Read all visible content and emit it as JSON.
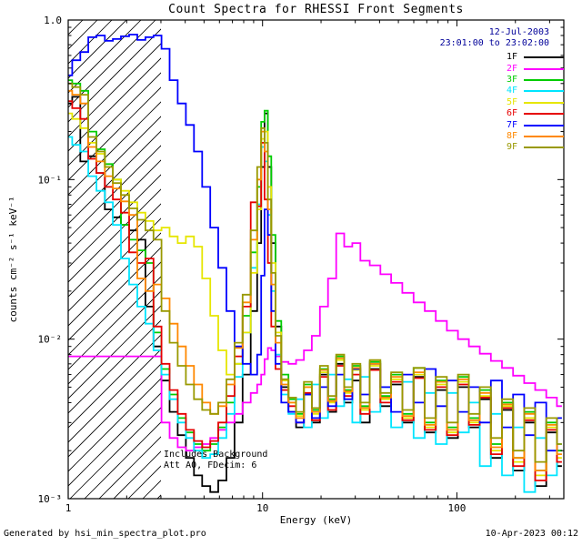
{
  "header": {
    "date": "12-Jul-2003",
    "time_range": "23:01:00 to 23:02:00",
    "color": "#000099"
  },
  "annotations": [
    "Includes Background",
    "Att A0, FDecim: 6"
  ],
  "footer": {
    "left": "Generated by hsi_min_spectra_plot.pro",
    "right": "10-Apr-2023 00:12"
  },
  "chart_data": {
    "type": "line",
    "mode": "histogram_steps",
    "title": "Count Spectra for RHESSI Front Segments",
    "xlabel": "Energy (keV)",
    "ylabel": "counts cm⁻² s⁻¹ keV⁻¹",
    "x_scale": "log",
    "y_scale": "log",
    "xlim": [
      1,
      355
    ],
    "ylim": [
      0.001,
      1
    ],
    "x_ticks": [
      {
        "value": 1,
        "label": "1"
      },
      {
        "value": 10,
        "label": "10"
      },
      {
        "value": 100,
        "label": "100"
      }
    ],
    "y_ticks": [
      {
        "value": 1,
        "label": "1.0"
      },
      {
        "value": 0.1,
        "label": "10⁻¹"
      },
      {
        "value": 0.01,
        "label": "10⁻²"
      },
      {
        "value": 0.001,
        "label": "10⁻³"
      }
    ],
    "hatch_region": {
      "x_from": 1,
      "x_to": 3
    },
    "x": [
      1.0,
      1.1,
      1.21,
      1.33,
      1.47,
      1.62,
      1.78,
      1.96,
      2.16,
      2.38,
      2.62,
      2.88,
      3.17,
      3.49,
      3.84,
      4.23,
      4.66,
      5.13,
      5.64,
      6.21,
      6.84,
      7.53,
      8.29,
      9.12,
      9.65,
      10.04,
      10.45,
      10.87,
      11.31,
      12.0,
      13.0,
      14.2,
      15.6,
      17.1,
      18.8,
      20.7,
      22.8,
      25.1,
      27.6,
      30.4,
      33.4,
      38.0,
      43.0,
      49.0,
      56.0,
      64.0,
      73.0,
      83.0,
      95.0,
      108.0,
      123.0,
      140.0,
      160.0,
      182.0,
      208.0,
      237.0,
      270.0,
      308.0,
      347.0
    ],
    "series": [
      {
        "name": "1F",
        "color": "#000000",
        "values": [
          0.3,
          0.33,
          0.13,
          0.14,
          0.11,
          0.065,
          0.058,
          0.052,
          0.048,
          0.042,
          0.016,
          0.009,
          0.0055,
          0.0035,
          0.0025,
          0.0018,
          0.0014,
          0.0012,
          0.0011,
          0.0013,
          0.0018,
          0.003,
          0.006,
          0.015,
          0.04,
          0.12,
          0.26,
          0.12,
          0.04,
          0.012,
          0.005,
          0.0035,
          0.0028,
          0.0045,
          0.003,
          0.006,
          0.0035,
          0.007,
          0.004,
          0.0055,
          0.003,
          0.0065,
          0.0038,
          0.0052,
          0.003,
          0.0058,
          0.0026,
          0.0048,
          0.0024,
          0.005,
          0.0028,
          0.0042,
          0.0018,
          0.0036,
          0.0015,
          0.003,
          0.0012,
          0.0026,
          0.0016
        ]
      },
      {
        "name": "2F",
        "color": "#ff00ff",
        "values": [
          0.0078,
          0.0078,
          0.0078,
          0.0078,
          0.0078,
          0.0078,
          0.0078,
          0.0078,
          0.0078,
          0.0078,
          0.0078,
          0.0078,
          0.003,
          0.0024,
          0.0021,
          0.002,
          0.0021,
          0.0022,
          0.0024,
          0.0027,
          0.003,
          0.0034,
          0.004,
          0.0046,
          0.0052,
          0.006,
          0.0075,
          0.0088,
          0.0085,
          0.0078,
          0.0072,
          0.007,
          0.0074,
          0.0085,
          0.0105,
          0.016,
          0.024,
          0.046,
          0.038,
          0.04,
          0.031,
          0.029,
          0.0255,
          0.0225,
          0.0195,
          0.017,
          0.015,
          0.013,
          0.0113,
          0.01,
          0.009,
          0.0081,
          0.0073,
          0.0066,
          0.0059,
          0.0053,
          0.0048,
          0.0043,
          0.0038
        ]
      },
      {
        "name": "3F",
        "color": "#00cc00",
        "values": [
          0.42,
          0.4,
          0.36,
          0.2,
          0.155,
          0.125,
          0.1,
          0.052,
          0.042,
          0.036,
          0.03,
          0.011,
          0.0065,
          0.0045,
          0.0032,
          0.0026,
          0.0022,
          0.002,
          0.0022,
          0.0028,
          0.004,
          0.007,
          0.014,
          0.035,
          0.09,
          0.23,
          0.27,
          0.14,
          0.045,
          0.013,
          0.006,
          0.0042,
          0.0034,
          0.0052,
          0.0036,
          0.0065,
          0.0042,
          0.0078,
          0.0048,
          0.0068,
          0.0038,
          0.0072,
          0.0044,
          0.006,
          0.0034,
          0.0066,
          0.003,
          0.0055,
          0.0028,
          0.0058,
          0.0032,
          0.0048,
          0.0022,
          0.004,
          0.0018,
          0.0035,
          0.0015,
          0.003,
          0.002
        ]
      },
      {
        "name": "4F",
        "color": "#00e5ff",
        "values": [
          0.185,
          0.165,
          0.15,
          0.105,
          0.085,
          0.072,
          0.052,
          0.032,
          0.022,
          0.016,
          0.0125,
          0.0085,
          0.006,
          0.0042,
          0.003,
          0.0024,
          0.002,
          0.0018,
          0.0019,
          0.0024,
          0.0034,
          0.0058,
          0.011,
          0.028,
          0.07,
          0.16,
          0.13,
          0.06,
          0.02,
          0.008,
          0.0045,
          0.0034,
          0.0042,
          0.0028,
          0.0052,
          0.0032,
          0.006,
          0.0038,
          0.0056,
          0.003,
          0.0058,
          0.0035,
          0.005,
          0.0028,
          0.0054,
          0.0024,
          0.0046,
          0.0022,
          0.0046,
          0.0026,
          0.004,
          0.0016,
          0.0034,
          0.0014,
          0.0028,
          0.0011,
          0.0024,
          0.0014,
          0.0022
        ]
      },
      {
        "name": "5F",
        "color": "#e6e600",
        "values": [
          0.26,
          0.24,
          0.21,
          0.17,
          0.145,
          0.12,
          0.1,
          0.085,
          0.072,
          0.062,
          0.055,
          0.048,
          0.05,
          0.044,
          0.04,
          0.044,
          0.038,
          0.024,
          0.014,
          0.0085,
          0.006,
          0.007,
          0.011,
          0.026,
          0.065,
          0.18,
          0.2,
          0.09,
          0.03,
          0.011,
          0.0055,
          0.004,
          0.0033,
          0.005,
          0.0034,
          0.0062,
          0.004,
          0.0074,
          0.0046,
          0.0064,
          0.0036,
          0.0068,
          0.0042,
          0.0056,
          0.0032,
          0.006,
          0.0028,
          0.0052,
          0.0026,
          0.0054,
          0.003,
          0.0044,
          0.002,
          0.0038,
          0.0017,
          0.0032,
          0.0014,
          0.0028,
          0.0018
        ]
      },
      {
        "name": "6F",
        "color": "#e60000",
        "values": [
          0.31,
          0.28,
          0.24,
          0.135,
          0.11,
          0.09,
          0.075,
          0.062,
          0.035,
          0.03,
          0.032,
          0.012,
          0.007,
          0.0048,
          0.0034,
          0.0027,
          0.0023,
          0.0021,
          0.0023,
          0.003,
          0.0044,
          0.0078,
          0.016,
          0.072,
          0.068,
          0.17,
          0.075,
          0.03,
          0.012,
          0.0065,
          0.0048,
          0.0038,
          0.003,
          0.0046,
          0.0031,
          0.0058,
          0.0036,
          0.0068,
          0.0044,
          0.006,
          0.0034,
          0.0064,
          0.004,
          0.0054,
          0.0031,
          0.0057,
          0.0027,
          0.005,
          0.0025,
          0.0052,
          0.0029,
          0.0043,
          0.0019,
          0.0037,
          0.0016,
          0.0031,
          0.0013,
          0.0027,
          0.0017
        ]
      },
      {
        "name": "7F",
        "color": "#0000ff",
        "values": [
          0.45,
          0.56,
          0.63,
          0.78,
          0.8,
          0.74,
          0.76,
          0.79,
          0.81,
          0.75,
          0.78,
          0.8,
          0.66,
          0.42,
          0.3,
          0.22,
          0.15,
          0.09,
          0.05,
          0.028,
          0.015,
          0.009,
          0.007,
          0.006,
          0.008,
          0.025,
          0.065,
          0.045,
          0.015,
          0.007,
          0.004,
          0.0035,
          0.003,
          0.0045,
          0.0032,
          0.005,
          0.0038,
          0.006,
          0.0042,
          0.0065,
          0.0045,
          0.007,
          0.005,
          0.0035,
          0.006,
          0.004,
          0.0065,
          0.0038,
          0.0055,
          0.0035,
          0.005,
          0.003,
          0.0055,
          0.0028,
          0.0045,
          0.0025,
          0.004,
          0.002,
          0.0032
        ]
      },
      {
        "name": "8F",
        "color": "#ff8800",
        "values": [
          0.36,
          0.34,
          0.3,
          0.16,
          0.13,
          0.105,
          0.088,
          0.073,
          0.06,
          0.024,
          0.02,
          0.022,
          0.018,
          0.0125,
          0.009,
          0.0068,
          0.0052,
          0.004,
          0.0034,
          0.0038,
          0.0052,
          0.0088,
          0.017,
          0.042,
          0.1,
          0.2,
          0.15,
          0.065,
          0.022,
          0.0095,
          0.0052,
          0.004,
          0.0032,
          0.005,
          0.0035,
          0.0064,
          0.0041,
          0.0076,
          0.0047,
          0.0066,
          0.0037,
          0.007,
          0.0043,
          0.0058,
          0.0033,
          0.0062,
          0.0029,
          0.0054,
          0.0027,
          0.0056,
          0.0031,
          0.0046,
          0.0021,
          0.0039,
          0.0018,
          0.0034,
          0.0015,
          0.0029,
          0.0019
        ]
      },
      {
        "name": "9F",
        "color": "#999900",
        "values": [
          0.4,
          0.38,
          0.34,
          0.185,
          0.15,
          0.12,
          0.095,
          0.08,
          0.066,
          0.056,
          0.048,
          0.042,
          0.015,
          0.0095,
          0.0068,
          0.0052,
          0.0042,
          0.0036,
          0.0034,
          0.004,
          0.0056,
          0.0095,
          0.019,
          0.048,
          0.12,
          0.21,
          0.17,
          0.075,
          0.026,
          0.0105,
          0.0056,
          0.0043,
          0.0035,
          0.0054,
          0.0037,
          0.0068,
          0.0044,
          0.008,
          0.005,
          0.007,
          0.004,
          0.0074,
          0.0046,
          0.0062,
          0.0036,
          0.0066,
          0.0032,
          0.0058,
          0.003,
          0.006,
          0.0034,
          0.005,
          0.0024,
          0.0042,
          0.002,
          0.0037,
          0.0017,
          0.0032,
          0.0022
        ]
      }
    ]
  }
}
